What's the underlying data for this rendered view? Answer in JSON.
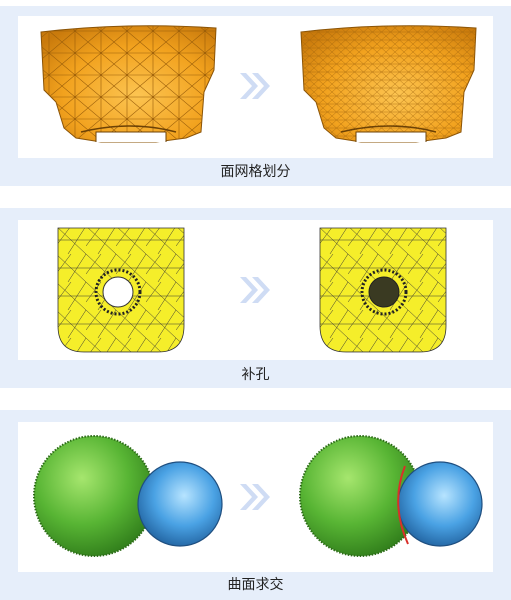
{
  "panels": [
    {
      "caption": "面网格划分",
      "before_icon": "orange-car-hood-coarse-mesh",
      "after_icon": "orange-car-hood-fine-mesh"
    },
    {
      "caption": "补孔",
      "before_icon": "yellow-plate-with-hole-mesh",
      "after_icon": "yellow-plate-hole-filled-mesh"
    },
    {
      "caption": "曲面求交",
      "before_icon": "green-blue-spheres",
      "after_icon": "green-blue-spheres-intersected"
    }
  ],
  "colors": {
    "panel_bg": "#e6eefa",
    "arrow": "#cfdcf4",
    "hood_orange": "#f2a21e",
    "plate_yellow": "#f5ee2a",
    "sphere_green": "#5db93a",
    "sphere_blue": "#4da6e6",
    "intersection_red": "#d9302a"
  }
}
